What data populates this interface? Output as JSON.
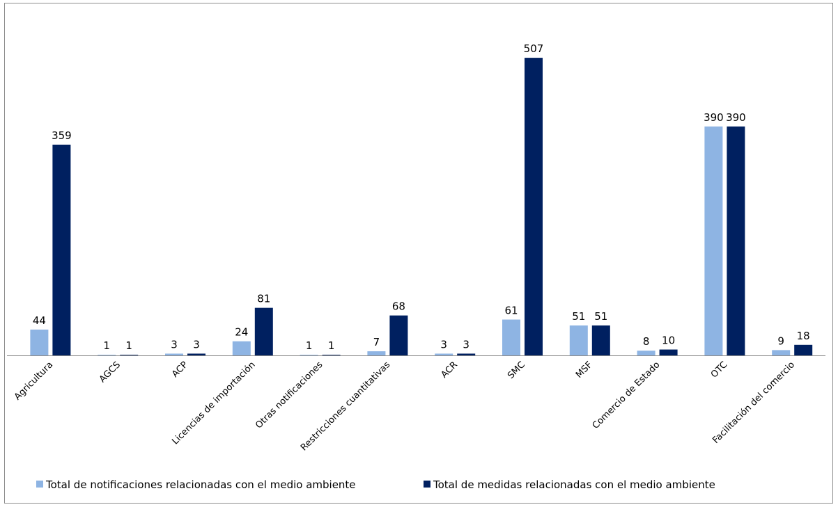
{
  "chart_data": {
    "type": "bar",
    "categories": [
      "Agricultura",
      "AGCS",
      "ACP",
      "Licencias de importación",
      "Otras notificaciones",
      "Restricciones cuantitativas",
      "ACR",
      "SMC",
      "MSF",
      "Comercio de Estado",
      "OTC",
      "Facilitación del comercio"
    ],
    "series": [
      {
        "name": "Total de notificaciones relacionadas con el medio ambiente",
        "color": "#8EB4E3",
        "values": [
          44,
          1,
          3,
          24,
          1,
          7,
          3,
          61,
          51,
          8,
          390,
          9
        ]
      },
      {
        "name": "Total de medidas relacionadas con el medio ambiente",
        "color": "#002060",
        "values": [
          359,
          1,
          3,
          81,
          1,
          68,
          3,
          507,
          51,
          10,
          390,
          18
        ]
      }
    ],
    "ylim": [
      0,
      600
    ],
    "grid": false,
    "legend_position": "bottom",
    "data_labels": true
  }
}
